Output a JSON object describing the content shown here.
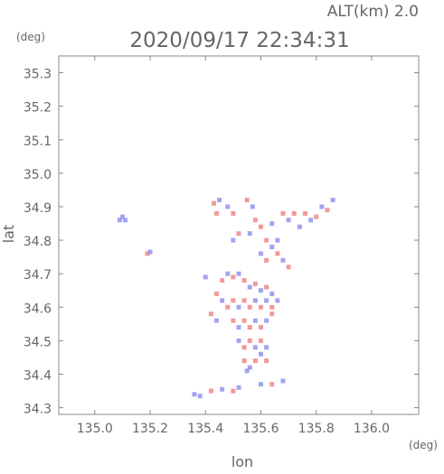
{
  "header": {
    "altitude_label": "ALT(km) 2.0",
    "datetime": "2020/09/17 22:34:31",
    "y_unit": "(deg)",
    "x_unit": "(deg)"
  },
  "chart_data": {
    "type": "scatter",
    "title": "2020/09/17 22:34:31",
    "xlabel": "lon",
    "ylabel": "lat",
    "xlim": [
      134.87,
      136.17
    ],
    "ylim": [
      34.28,
      35.35
    ],
    "xticks": [
      135.0,
      135.2,
      135.4,
      135.6,
      135.8,
      136.0
    ],
    "xtick_labels": [
      "135.0",
      "135.2",
      "135.4",
      "135.6",
      "135.8",
      "136.0"
    ],
    "yticks": [
      34.3,
      34.4,
      34.5,
      34.6,
      34.7,
      34.8,
      34.9,
      35.0,
      35.1,
      35.2,
      35.3
    ],
    "ytick_labels": [
      "34.3",
      "34.4",
      "34.5",
      "34.6",
      "34.7",
      "34.8",
      "34.9",
      "35.0",
      "35.1",
      "35.2",
      "35.3"
    ],
    "grid": false,
    "colors": {
      "positive": "#f08080",
      "negative": "#8c8cf0",
      "neutral": "#c8c8f5"
    },
    "series": [
      {
        "name": "",
        "points": [
          [
            135.1,
            34.87,
            -1
          ],
          [
            135.09,
            34.86,
            -1
          ],
          [
            135.11,
            34.86,
            -1
          ],
          [
            135.19,
            34.76,
            1
          ],
          [
            135.2,
            34.765,
            -1
          ],
          [
            135.43,
            34.91,
            1
          ],
          [
            135.45,
            34.92,
            -1
          ],
          [
            135.44,
            34.88,
            1
          ],
          [
            135.48,
            34.9,
            -1
          ],
          [
            135.5,
            34.88,
            1
          ],
          [
            135.55,
            34.92,
            1
          ],
          [
            135.57,
            34.9,
            -1
          ],
          [
            135.58,
            34.86,
            1
          ],
          [
            135.56,
            34.82,
            -1
          ],
          [
            135.6,
            34.84,
            1
          ],
          [
            135.64,
            34.85,
            -1
          ],
          [
            135.68,
            34.88,
            1
          ],
          [
            135.7,
            34.86,
            -1
          ],
          [
            135.72,
            34.88,
            1
          ],
          [
            135.74,
            34.84,
            -1
          ],
          [
            135.76,
            34.88,
            1
          ],
          [
            135.78,
            34.86,
            -1
          ],
          [
            135.8,
            34.87,
            1
          ],
          [
            135.82,
            34.9,
            -1
          ],
          [
            135.84,
            34.89,
            1
          ],
          [
            135.86,
            34.92,
            -1
          ],
          [
            135.62,
            34.8,
            1
          ],
          [
            135.64,
            34.78,
            -1
          ],
          [
            135.66,
            34.76,
            1
          ],
          [
            135.68,
            34.74,
            -1
          ],
          [
            135.7,
            34.72,
            1
          ],
          [
            135.6,
            34.76,
            -1
          ],
          [
            135.62,
            34.74,
            1
          ],
          [
            135.66,
            34.8,
            -1
          ],
          [
            135.5,
            34.8,
            -1
          ],
          [
            135.52,
            34.82,
            1
          ],
          [
            135.4,
            34.69,
            -1
          ],
          [
            135.46,
            34.68,
            1
          ],
          [
            135.48,
            34.7,
            -1
          ],
          [
            135.5,
            34.69,
            1
          ],
          [
            135.52,
            34.7,
            -1
          ],
          [
            135.54,
            34.68,
            1
          ],
          [
            135.56,
            34.66,
            -1
          ],
          [
            135.58,
            34.67,
            1
          ],
          [
            135.6,
            34.65,
            -1
          ],
          [
            135.62,
            34.66,
            1
          ],
          [
            135.64,
            34.64,
            -1
          ],
          [
            135.44,
            34.64,
            1
          ],
          [
            135.46,
            34.62,
            -1
          ],
          [
            135.48,
            34.6,
            1
          ],
          [
            135.5,
            34.62,
            1
          ],
          [
            135.52,
            34.6,
            -1
          ],
          [
            135.54,
            34.62,
            1
          ],
          [
            135.56,
            34.6,
            1
          ],
          [
            135.58,
            34.62,
            -1
          ],
          [
            135.6,
            34.6,
            1
          ],
          [
            135.62,
            34.62,
            -1
          ],
          [
            135.64,
            34.6,
            1
          ],
          [
            135.66,
            34.62,
            -1
          ],
          [
            135.42,
            34.58,
            1
          ],
          [
            135.44,
            34.56,
            -1
          ],
          [
            135.5,
            34.56,
            1
          ],
          [
            135.52,
            34.54,
            -1
          ],
          [
            135.54,
            34.56,
            1
          ],
          [
            135.56,
            34.54,
            1
          ],
          [
            135.58,
            34.56,
            -1
          ],
          [
            135.6,
            34.54,
            1
          ],
          [
            135.62,
            34.56,
            -1
          ],
          [
            135.64,
            34.58,
            1
          ],
          [
            135.52,
            34.5,
            -1
          ],
          [
            135.54,
            34.48,
            1
          ],
          [
            135.56,
            34.5,
            1
          ],
          [
            135.58,
            34.48,
            -1
          ],
          [
            135.6,
            34.5,
            1
          ],
          [
            135.62,
            34.48,
            -1
          ],
          [
            135.54,
            34.44,
            1
          ],
          [
            135.56,
            34.42,
            -1
          ],
          [
            135.58,
            34.44,
            1
          ],
          [
            135.6,
            34.46,
            -1
          ],
          [
            135.62,
            34.44,
            1
          ],
          [
            135.55,
            34.41,
            -1
          ],
          [
            135.36,
            34.34,
            -1
          ],
          [
            135.38,
            34.335,
            -1
          ],
          [
            135.42,
            34.35,
            1
          ],
          [
            135.46,
            34.355,
            -1
          ],
          [
            135.5,
            34.35,
            1
          ],
          [
            135.52,
            34.36,
            -1
          ],
          [
            135.6,
            34.37,
            -1
          ],
          [
            135.64,
            34.37,
            1
          ],
          [
            135.68,
            34.38,
            -1
          ]
        ]
      }
    ]
  }
}
